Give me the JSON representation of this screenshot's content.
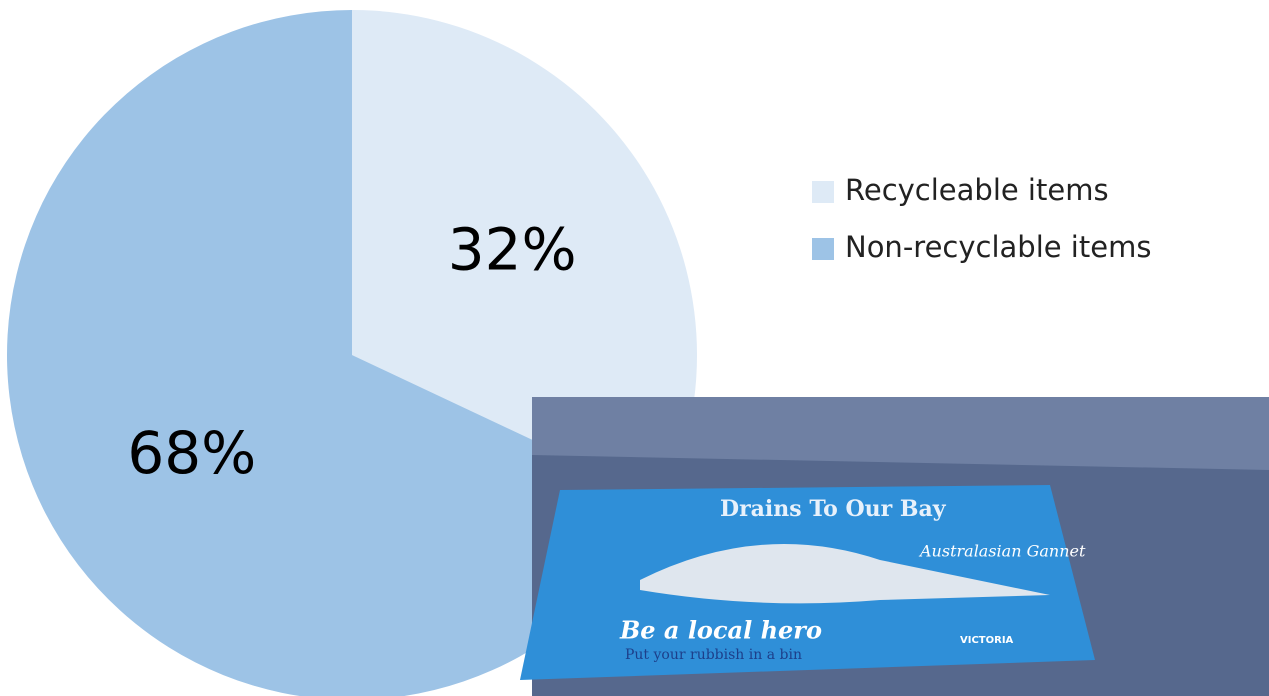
{
  "chart_data": {
    "type": "pie",
    "categories": [
      "Recycleable items",
      "Non-recyclable items"
    ],
    "values": [
      32,
      68
    ],
    "value_labels": [
      "32%",
      "68%"
    ],
    "colors": [
      "#deeaf6",
      "#9dc3e6"
    ],
    "legend": "right"
  },
  "photo": {
    "texts": [
      "Drains To Our Bay",
      "Australasian Gannet",
      "Be a local hero",
      "Put your rubbish in a bin",
      "VICTORIA"
    ]
  }
}
